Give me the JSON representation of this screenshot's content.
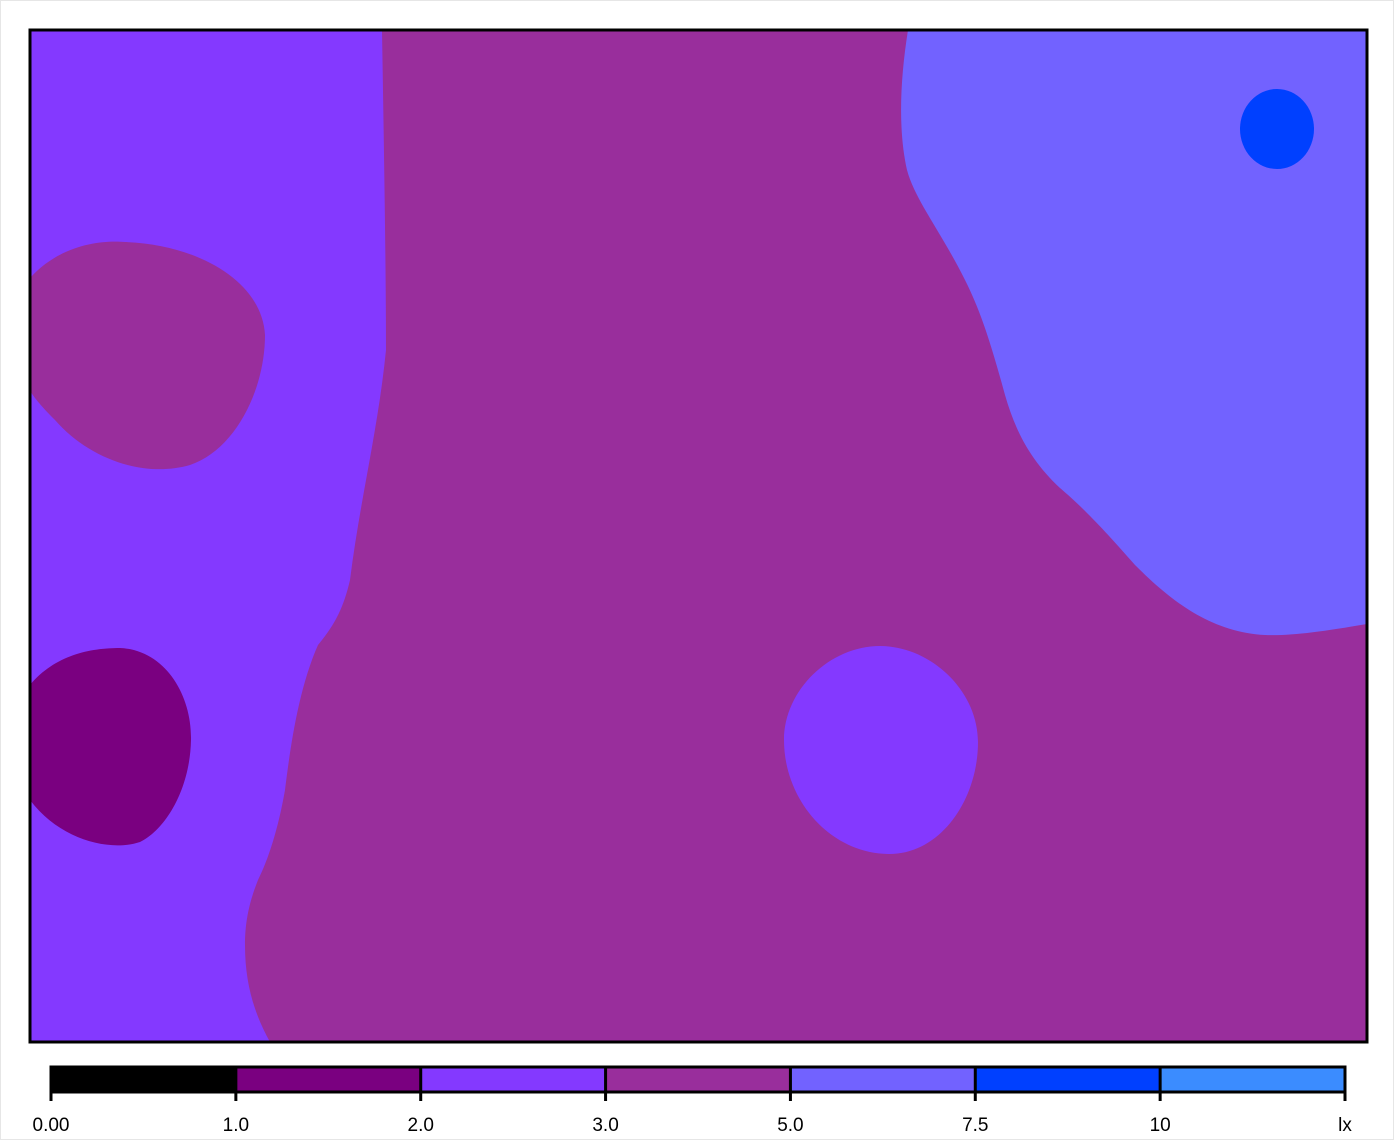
{
  "chart_data": {
    "type": "heatmap",
    "title": "",
    "unit": "lx",
    "colorbar": {
      "bins": [
        {
          "from": 0.0,
          "to": 1.0,
          "color": "#000000"
        },
        {
          "from": 1.0,
          "to": 2.0,
          "color": "#7a0080"
        },
        {
          "from": 2.0,
          "to": 3.0,
          "color": "#8439ff"
        },
        {
          "from": 3.0,
          "to": 5.0,
          "color": "#992e9c"
        },
        {
          "from": 5.0,
          "to": 7.5,
          "color": "#7262ff"
        },
        {
          "from": 7.5,
          "to": 10.0,
          "color": "#0040ff"
        },
        {
          "from": 10.0,
          "to": null,
          "color": "#3b8cff"
        }
      ],
      "tick_labels": [
        "0.00",
        "1.0",
        "2.0",
        "3.0",
        "5.0",
        "7.5",
        "10",
        "lx"
      ]
    },
    "regions": [
      {
        "id": "left-band",
        "range": "2.0-3.0"
      },
      {
        "id": "center-field",
        "range": "3.0-5.0"
      },
      {
        "id": "upper-right-zone",
        "range": "5.0-7.5"
      },
      {
        "id": "upper-right-spot",
        "range": "7.5-10"
      },
      {
        "id": "left-upper-patch",
        "range": "3.0-5.0"
      },
      {
        "id": "left-lower-patch",
        "range": "1.0-2.0"
      },
      {
        "id": "center-right-patch",
        "range": "2.0-3.0"
      }
    ],
    "legend": "bottom"
  }
}
